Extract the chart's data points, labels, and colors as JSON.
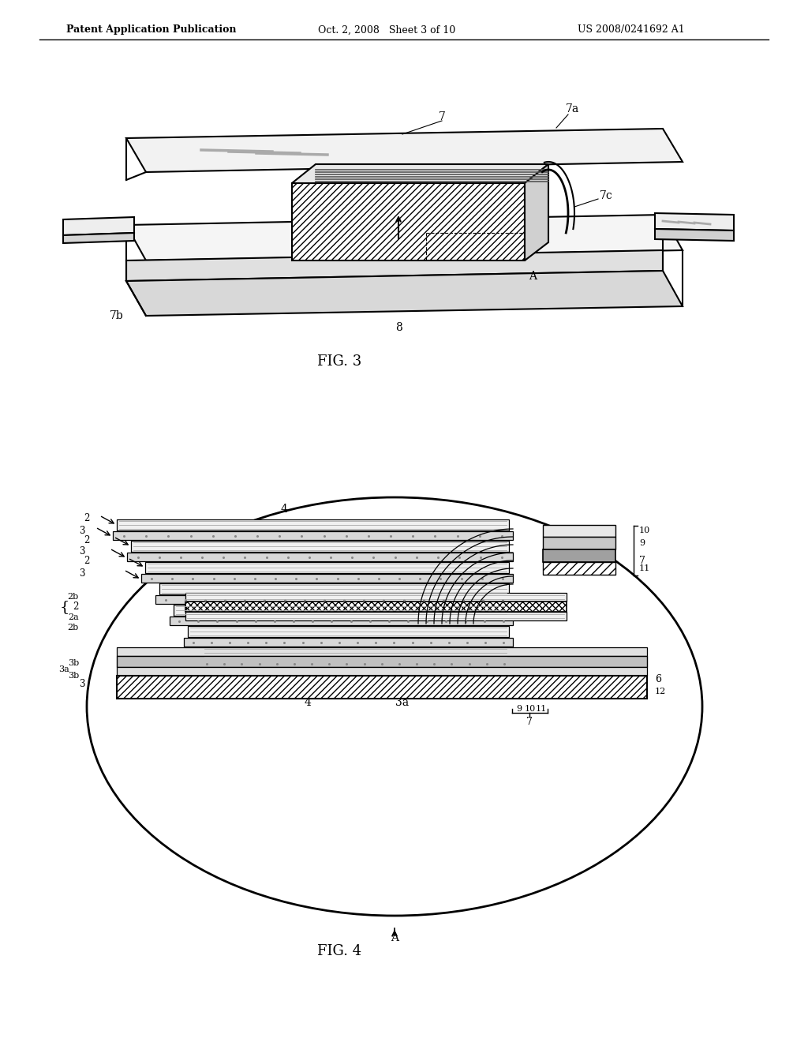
{
  "header_left": "Patent Application Publication",
  "header_mid": "Oct. 2, 2008   Sheet 3 of 10",
  "header_right": "US 2008/0241692 A1",
  "fig3_label": "FIG. 3",
  "fig4_label": "FIG. 4",
  "bg_color": "#ffffff"
}
